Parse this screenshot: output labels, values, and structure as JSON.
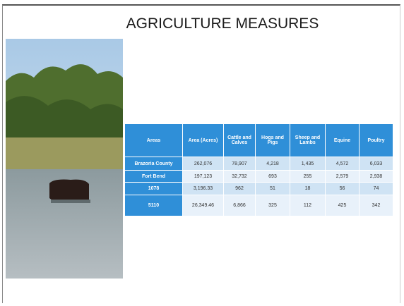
{
  "title": "AGRICULTURE MEASURES",
  "table": {
    "header": [
      "Areas",
      "Area (Acres)",
      "Cattle and Calves",
      "Hogs and Pigs",
      "Sheep and Lambs",
      "Equine",
      "Poultry"
    ],
    "rows": [
      [
        "Brazoria County",
        "262,076",
        "78,907",
        "4,218",
        "1,435",
        "4,572",
        "6,033"
      ],
      [
        "Fort Bend",
        "197,123",
        "32,732",
        "693",
        "255",
        "2,579",
        "2,938"
      ],
      [
        "1078",
        "3,196.33",
        "962",
        "51",
        "18",
        "56",
        "74"
      ],
      [
        "5110",
        "26,349.46",
        "6,866",
        "325",
        "112",
        "425",
        "342"
      ]
    ]
  }
}
